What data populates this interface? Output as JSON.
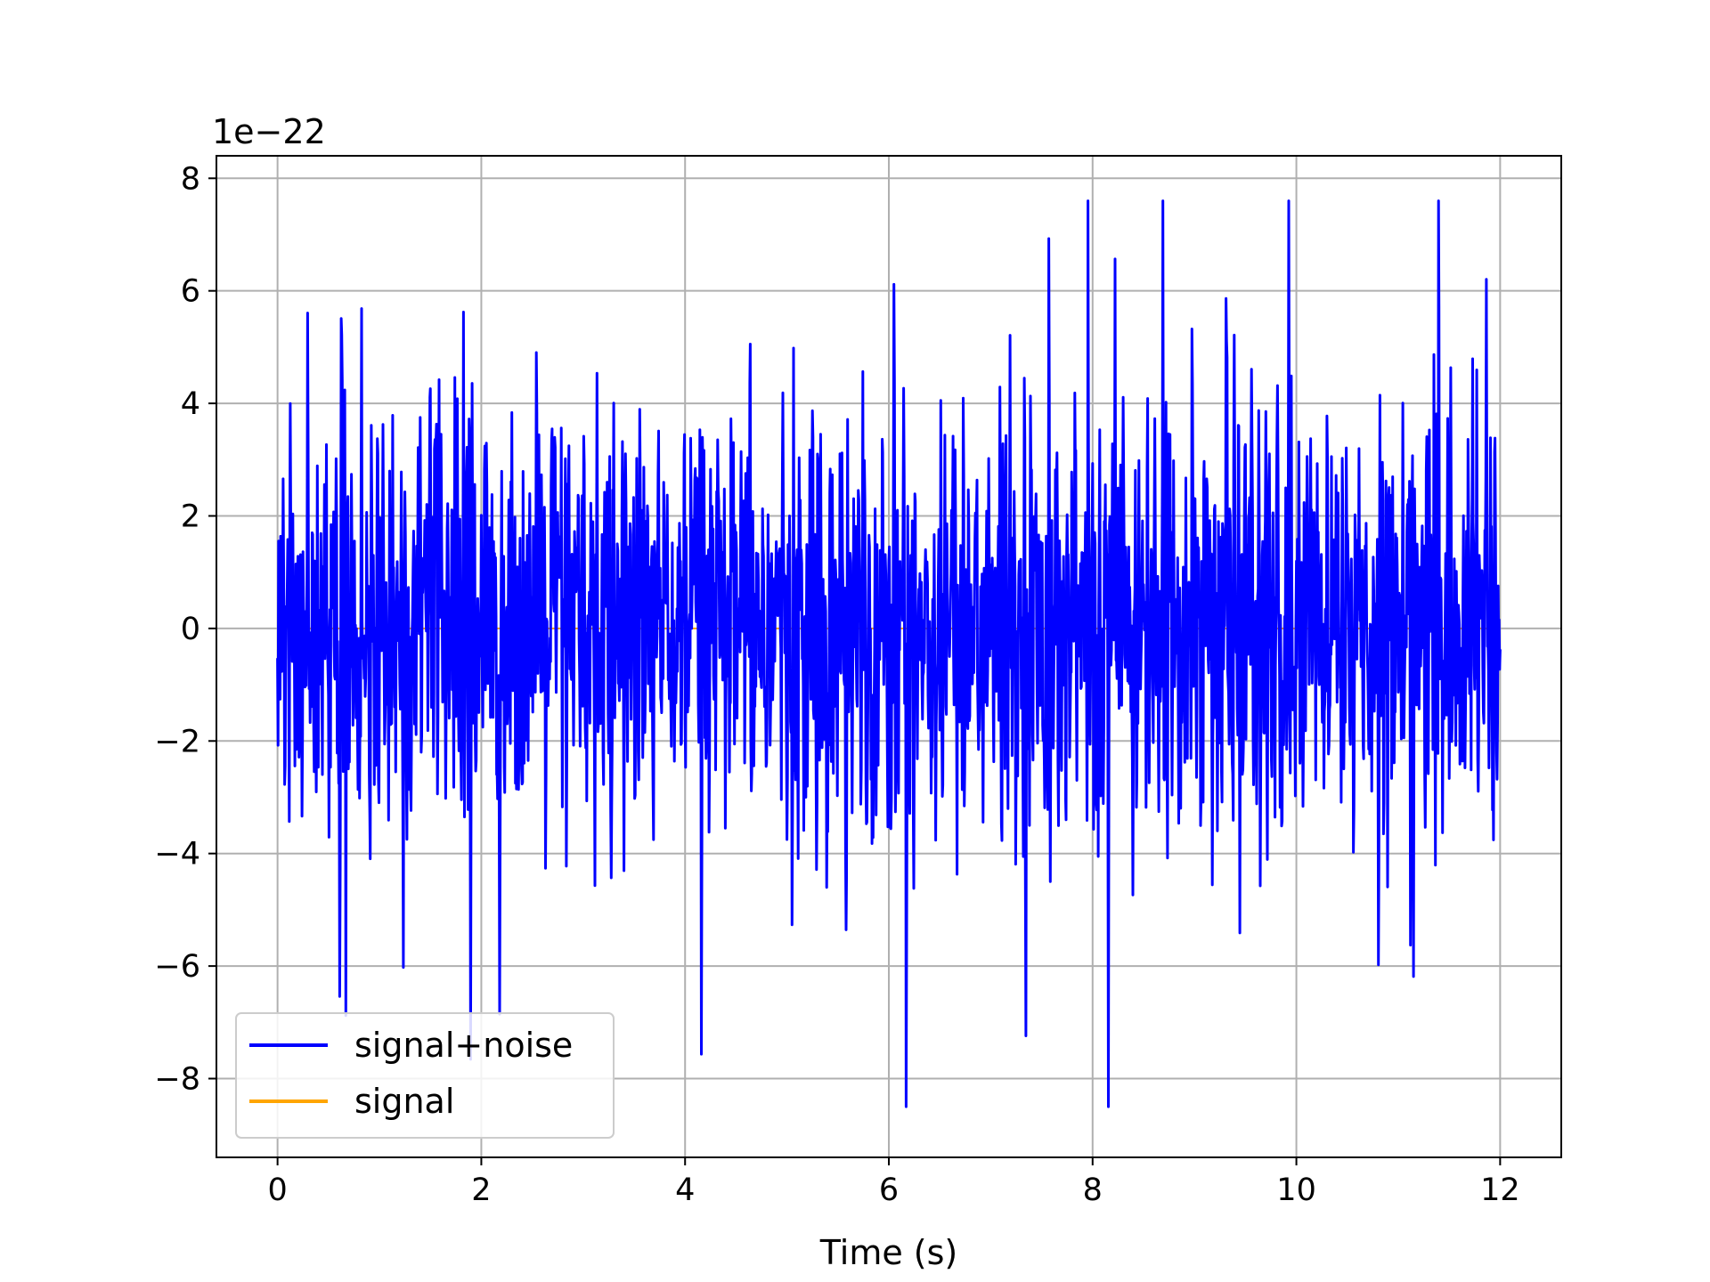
{
  "chart_data": {
    "type": "line",
    "title": "",
    "xlabel": "Time (s)",
    "ylabel": "",
    "y_offset_text": "1e−22",
    "xlim": [
      -0.6,
      12.6
    ],
    "ylim": [
      -9.4,
      8.4
    ],
    "x_ticks": [
      0,
      2,
      4,
      6,
      8,
      10,
      12
    ],
    "x_tick_labels": [
      "0",
      "2",
      "4",
      "6",
      "8",
      "10",
      "12"
    ],
    "y_ticks": [
      -8,
      -6,
      -4,
      -2,
      0,
      2,
      4,
      6,
      8
    ],
    "y_tick_labels": [
      "−8",
      "−6",
      "−4",
      "−2",
      "0",
      "2",
      "4",
      "6",
      "8"
    ],
    "grid": true,
    "legend_position": "lower-left",
    "series": [
      {
        "name": "signal+noise",
        "color": "#0000ff",
        "x_range": [
          0,
          12
        ],
        "y_range": [
          -8.5,
          7.6
        ],
        "y_scale": "1e-22"
      },
      {
        "name": "signal",
        "color": "#ffa500",
        "x_range": [
          0,
          12
        ],
        "y_scale": "1e-22"
      }
    ]
  }
}
